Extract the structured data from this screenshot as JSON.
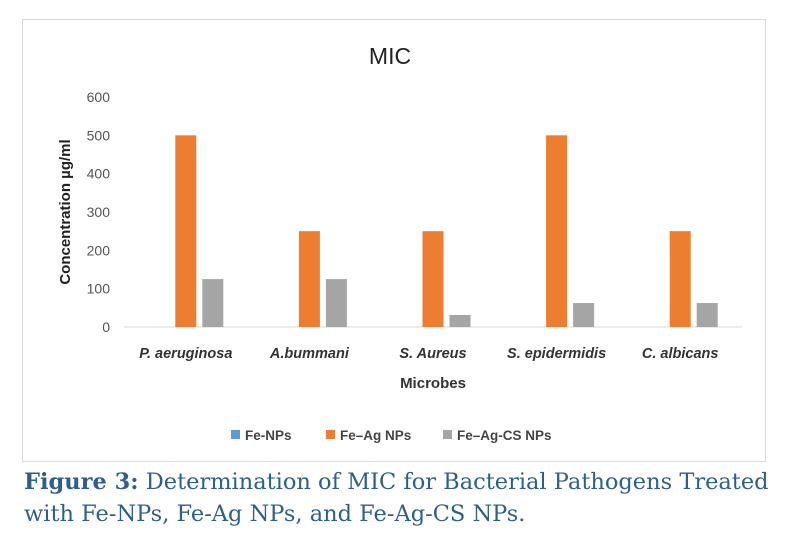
{
  "chart_data": {
    "type": "bar",
    "title": "MIC",
    "xlabel": "Microbes",
    "ylabel": "Concentration µg/ml",
    "ylim": [
      0,
      600
    ],
    "yticks": [
      0,
      100,
      200,
      300,
      400,
      500,
      600
    ],
    "grid": false,
    "legend_position": "bottom",
    "categories": [
      "P. aeruginosa",
      "A.bummani",
      "S. Aureus",
      "S. epidermidis",
      "C. albicans"
    ],
    "series": [
      {
        "name": "Fe-NPs",
        "color": "#5b9bd5",
        "values": [
          0,
          0,
          0,
          0,
          0
        ]
      },
      {
        "name": "Fe–Ag NPs",
        "color": "#ed7d31",
        "values": [
          500,
          250,
          250,
          500,
          250
        ]
      },
      {
        "name": "Fe–Ag-CS NPs",
        "color": "#a5a5a5",
        "values": [
          125,
          125,
          31.25,
          62.5,
          62.5
        ]
      }
    ]
  },
  "caption": {
    "label": "Figure 3:",
    "text": " Determination of MIC for Bacterial Pathogens Treated with Fe-NPs, Fe-Ag NPs, and Fe-Ag-CS NPs."
  }
}
